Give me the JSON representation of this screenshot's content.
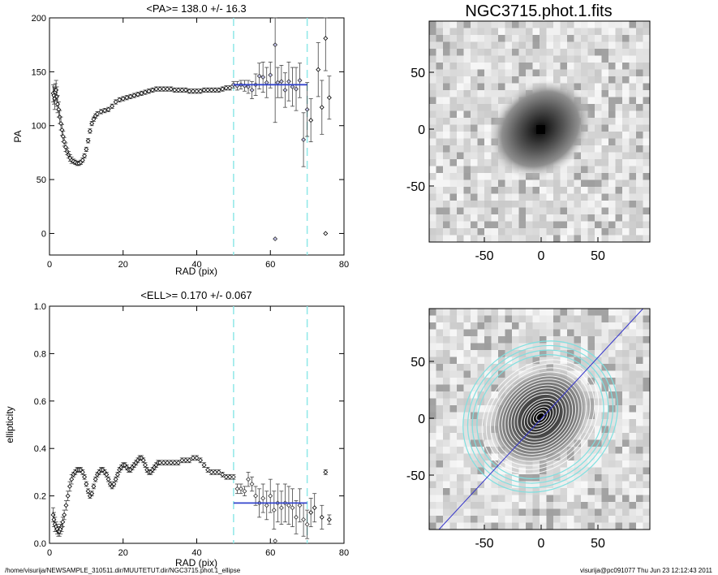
{
  "footer": {
    "path": "/home/visurija/NEWSAMPLE_310511.dir/MUUTETUT.dir/NGC3715.phot.1_ellipse",
    "user_time": "visurija@pc091077  Thu Jun 23 12:12:43 2011"
  },
  "image_title": "NGC3715.phot.1.fits",
  "chart_data": [
    {
      "type": "scatter",
      "title": "<PA>= 138.0 +/-  16.3",
      "xlabel": "RAD (pix)",
      "ylabel": "PA",
      "xlim": [
        0,
        80
      ],
      "ylim": [
        -20,
        200
      ],
      "xticks": [
        0,
        20,
        40,
        60,
        80
      ],
      "yticks": [
        0,
        50,
        100,
        150,
        200
      ],
      "vlines": [
        50,
        70
      ],
      "mean_segment": {
        "x": [
          50,
          70
        ],
        "y": 138.0
      },
      "points": [
        [
          1.0,
          130,
          8
        ],
        [
          1.2,
          128,
          8
        ],
        [
          1.4,
          125,
          10
        ],
        [
          1.6,
          131,
          8
        ],
        [
          1.8,
          133,
          9
        ],
        [
          2.0,
          127,
          9
        ],
        [
          2.2,
          120,
          8
        ],
        [
          2.5,
          115,
          7
        ],
        [
          2.8,
          108,
          6
        ],
        [
          3.1,
          102,
          6
        ],
        [
          3.4,
          96,
          5
        ],
        [
          3.7,
          90,
          5
        ],
        [
          4.0,
          85,
          4
        ],
        [
          4.4,
          80,
          4
        ],
        [
          4.8,
          76,
          3
        ],
        [
          5.2,
          73,
          3
        ],
        [
          5.6,
          70,
          3
        ],
        [
          6.0,
          68,
          3
        ],
        [
          6.5,
          67,
          2
        ],
        [
          7.0,
          66,
          2
        ],
        [
          7.5,
          65,
          2
        ],
        [
          8.0,
          65,
          2
        ],
        [
          8.5,
          66,
          2
        ],
        [
          9.0,
          68,
          2
        ],
        [
          9.5,
          72,
          2
        ],
        [
          10.0,
          78,
          2
        ],
        [
          10.5,
          86,
          2
        ],
        [
          11.0,
          95,
          2
        ],
        [
          11.5,
          102,
          2
        ],
        [
          12.0,
          106,
          2
        ],
        [
          12.5,
          109,
          2
        ],
        [
          13.0,
          111,
          2
        ],
        [
          14.0,
          113,
          2
        ],
        [
          15.0,
          114,
          2
        ],
        [
          16.0,
          115,
          2
        ],
        [
          17.0,
          118,
          2
        ],
        [
          18.0,
          122,
          2
        ],
        [
          19.0,
          124,
          2
        ],
        [
          20.0,
          125,
          2
        ],
        [
          21.0,
          126,
          2
        ],
        [
          22.0,
          127,
          2
        ],
        [
          23.0,
          128,
          2
        ],
        [
          24.0,
          129,
          2
        ],
        [
          25.0,
          130,
          2
        ],
        [
          26.0,
          131,
          2
        ],
        [
          27.0,
          132,
          2
        ],
        [
          28.0,
          133,
          2
        ],
        [
          29.0,
          134,
          2
        ],
        [
          30.0,
          134,
          2
        ],
        [
          31.0,
          134,
          2
        ],
        [
          32.0,
          134,
          2
        ],
        [
          33.0,
          134,
          2
        ],
        [
          34.0,
          133,
          2
        ],
        [
          35.0,
          133,
          2
        ],
        [
          36.0,
          133,
          2
        ],
        [
          37.0,
          133,
          2
        ],
        [
          38.0,
          132,
          2
        ],
        [
          39.0,
          132,
          2
        ],
        [
          40.0,
          132,
          2
        ],
        [
          41.0,
          132,
          2
        ],
        [
          42.0,
          133,
          2
        ],
        [
          43.0,
          133,
          2
        ],
        [
          44.0,
          133,
          2
        ],
        [
          45.0,
          133,
          2
        ],
        [
          46.0,
          133,
          2
        ],
        [
          47.0,
          134,
          2
        ],
        [
          48.0,
          135,
          2
        ],
        [
          49.0,
          135,
          2
        ],
        [
          50.0,
          138,
          3
        ],
        [
          51.0,
          137,
          4
        ],
        [
          52.0,
          138,
          4
        ],
        [
          53.0,
          137,
          5
        ],
        [
          54.0,
          136,
          6
        ],
        [
          55.0,
          133,
          8
        ],
        [
          56.0,
          138,
          10
        ],
        [
          57.0,
          146,
          12
        ],
        [
          58.0,
          145,
          14
        ],
        [
          59.0,
          140,
          14
        ],
        [
          60.0,
          147,
          12
        ],
        [
          61.3,
          175,
          72
        ],
        [
          62.0,
          140,
          14
        ],
        [
          63.0,
          141,
          15
        ],
        [
          64.0,
          133,
          16
        ],
        [
          65.0,
          141,
          18
        ],
        [
          66.0,
          136,
          18
        ],
        [
          67.0,
          134,
          20
        ],
        [
          68.0,
          142,
          16
        ],
        [
          69.0,
          87,
          25
        ],
        [
          70.0,
          115,
          25
        ],
        [
          71.0,
          105,
          20
        ],
        [
          73.0,
          152,
          25
        ],
        [
          74.0,
          117,
          25
        ],
        [
          75.0,
          181,
          30
        ],
        [
          76.0,
          126,
          20
        ],
        [
          61.3,
          -5,
          0
        ],
        [
          75.0,
          0,
          0
        ]
      ]
    },
    {
      "type": "scatter",
      "title": "<ELL>= 0.170 +/-  0.067",
      "xlabel": "RAD (pix)",
      "ylabel": "ellipticity",
      "xlim": [
        0,
        80
      ],
      "ylim": [
        0,
        1
      ],
      "xticks": [
        0,
        20,
        40,
        60,
        80
      ],
      "yticks": [
        0.0,
        0.2,
        0.4,
        0.6,
        0.8,
        1.0
      ],
      "vlines": [
        50,
        70
      ],
      "mean_segment": {
        "x": [
          50,
          70
        ],
        "y": 0.17
      },
      "points": [
        [
          1.0,
          0.12,
          0.03
        ],
        [
          1.2,
          0.1,
          0.03
        ],
        [
          1.5,
          0.08,
          0.03
        ],
        [
          1.8,
          0.07,
          0.02
        ],
        [
          2.1,
          0.06,
          0.02
        ],
        [
          2.4,
          0.05,
          0.02
        ],
        [
          2.7,
          0.05,
          0.02
        ],
        [
          3.0,
          0.06,
          0.02
        ],
        [
          3.3,
          0.07,
          0.02
        ],
        [
          3.6,
          0.09,
          0.02
        ],
        [
          4.0,
          0.12,
          0.02
        ],
        [
          4.5,
          0.16,
          0.02
        ],
        [
          5.0,
          0.2,
          0.02
        ],
        [
          5.5,
          0.24,
          0.02
        ],
        [
          6.0,
          0.27,
          0.02
        ],
        [
          6.5,
          0.29,
          0.01
        ],
        [
          7.0,
          0.3,
          0.01
        ],
        [
          7.5,
          0.31,
          0.01
        ],
        [
          8.0,
          0.31,
          0.01
        ],
        [
          8.5,
          0.31,
          0.01
        ],
        [
          9.0,
          0.3,
          0.01
        ],
        [
          9.5,
          0.28,
          0.01
        ],
        [
          10.0,
          0.25,
          0.01
        ],
        [
          10.5,
          0.22,
          0.01
        ],
        [
          11.0,
          0.2,
          0.01
        ],
        [
          11.5,
          0.21,
          0.01
        ],
        [
          12.0,
          0.24,
          0.01
        ],
        [
          12.5,
          0.27,
          0.01
        ],
        [
          13.0,
          0.29,
          0.01
        ],
        [
          13.5,
          0.3,
          0.01
        ],
        [
          14.0,
          0.31,
          0.01
        ],
        [
          14.5,
          0.31,
          0.01
        ],
        [
          15.0,
          0.3,
          0.01
        ],
        [
          15.5,
          0.29,
          0.01
        ],
        [
          16.0,
          0.27,
          0.01
        ],
        [
          16.5,
          0.25,
          0.01
        ],
        [
          17.0,
          0.24,
          0.01
        ],
        [
          17.5,
          0.25,
          0.01
        ],
        [
          18.0,
          0.27,
          0.01
        ],
        [
          18.5,
          0.29,
          0.01
        ],
        [
          19.0,
          0.31,
          0.01
        ],
        [
          19.5,
          0.32,
          0.01
        ],
        [
          20.0,
          0.33,
          0.01
        ],
        [
          20.5,
          0.33,
          0.01
        ],
        [
          21.0,
          0.32,
          0.01
        ],
        [
          21.5,
          0.31,
          0.01
        ],
        [
          22.0,
          0.31,
          0.01
        ],
        [
          22.5,
          0.32,
          0.01
        ],
        [
          23.0,
          0.33,
          0.01
        ],
        [
          23.5,
          0.34,
          0.01
        ],
        [
          24.0,
          0.35,
          0.01
        ],
        [
          24.5,
          0.36,
          0.01
        ],
        [
          25.0,
          0.36,
          0.01
        ],
        [
          25.5,
          0.35,
          0.01
        ],
        [
          26.0,
          0.33,
          0.01
        ],
        [
          26.5,
          0.31,
          0.01
        ],
        [
          27.0,
          0.3,
          0.01
        ],
        [
          27.5,
          0.3,
          0.01
        ],
        [
          28.0,
          0.31,
          0.01
        ],
        [
          28.5,
          0.32,
          0.01
        ],
        [
          29.0,
          0.33,
          0.01
        ],
        [
          29.5,
          0.34,
          0.01
        ],
        [
          30.0,
          0.34,
          0.01
        ],
        [
          31.0,
          0.34,
          0.01
        ],
        [
          32.0,
          0.34,
          0.01
        ],
        [
          33.0,
          0.34,
          0.01
        ],
        [
          34.0,
          0.34,
          0.01
        ],
        [
          35.0,
          0.34,
          0.01
        ],
        [
          36.0,
          0.35,
          0.01
        ],
        [
          37.0,
          0.35,
          0.01
        ],
        [
          38.0,
          0.35,
          0.01
        ],
        [
          39.0,
          0.36,
          0.01
        ],
        [
          40.0,
          0.36,
          0.01
        ],
        [
          41.0,
          0.35,
          0.01
        ],
        [
          42.0,
          0.33,
          0.01
        ],
        [
          43.0,
          0.31,
          0.01
        ],
        [
          44.0,
          0.3,
          0.01
        ],
        [
          45.0,
          0.3,
          0.01
        ],
        [
          46.0,
          0.3,
          0.01
        ],
        [
          47.0,
          0.29,
          0.01
        ],
        [
          48.0,
          0.28,
          0.01
        ],
        [
          49.0,
          0.28,
          0.01
        ],
        [
          50.0,
          0.28,
          0.01
        ],
        [
          51.0,
          0.23,
          0.02
        ],
        [
          52.0,
          0.23,
          0.02
        ],
        [
          53.0,
          0.22,
          0.02
        ],
        [
          54.0,
          0.27,
          0.03
        ],
        [
          55.0,
          0.25,
          0.03
        ],
        [
          56.0,
          0.2,
          0.04
        ],
        [
          57.0,
          0.17,
          0.06
        ],
        [
          58.0,
          0.19,
          0.06
        ],
        [
          59.0,
          0.16,
          0.06
        ],
        [
          60.0,
          0.2,
          0.07
        ],
        [
          61.0,
          0.14,
          0.08
        ],
        [
          62.0,
          0.17,
          0.08
        ],
        [
          63.0,
          0.15,
          0.07
        ],
        [
          64.0,
          0.17,
          0.08
        ],
        [
          65.0,
          0.16,
          0.08
        ],
        [
          66.0,
          0.15,
          0.08
        ],
        [
          67.0,
          0.11,
          0.07
        ],
        [
          68.0,
          0.16,
          0.07
        ],
        [
          69.0,
          0.1,
          0.07
        ],
        [
          70.0,
          0.08,
          0.06
        ],
        [
          71.0,
          0.13,
          0.06
        ],
        [
          72.0,
          0.15,
          0.06
        ],
        [
          74.0,
          0.11,
          0.05
        ],
        [
          75.0,
          0.3,
          0.01
        ],
        [
          76.0,
          0.1,
          0.02
        ],
        [
          61.3,
          0.01,
          0.0
        ]
      ]
    }
  ],
  "image_panels": [
    {
      "xticks": [
        "-50",
        "0",
        "50"
      ],
      "yticks": [
        "50",
        "0",
        "-50"
      ]
    },
    {
      "xticks": [
        "-50",
        "0",
        "50"
      ],
      "yticks": [
        "50",
        "0",
        "-50"
      ]
    }
  ]
}
